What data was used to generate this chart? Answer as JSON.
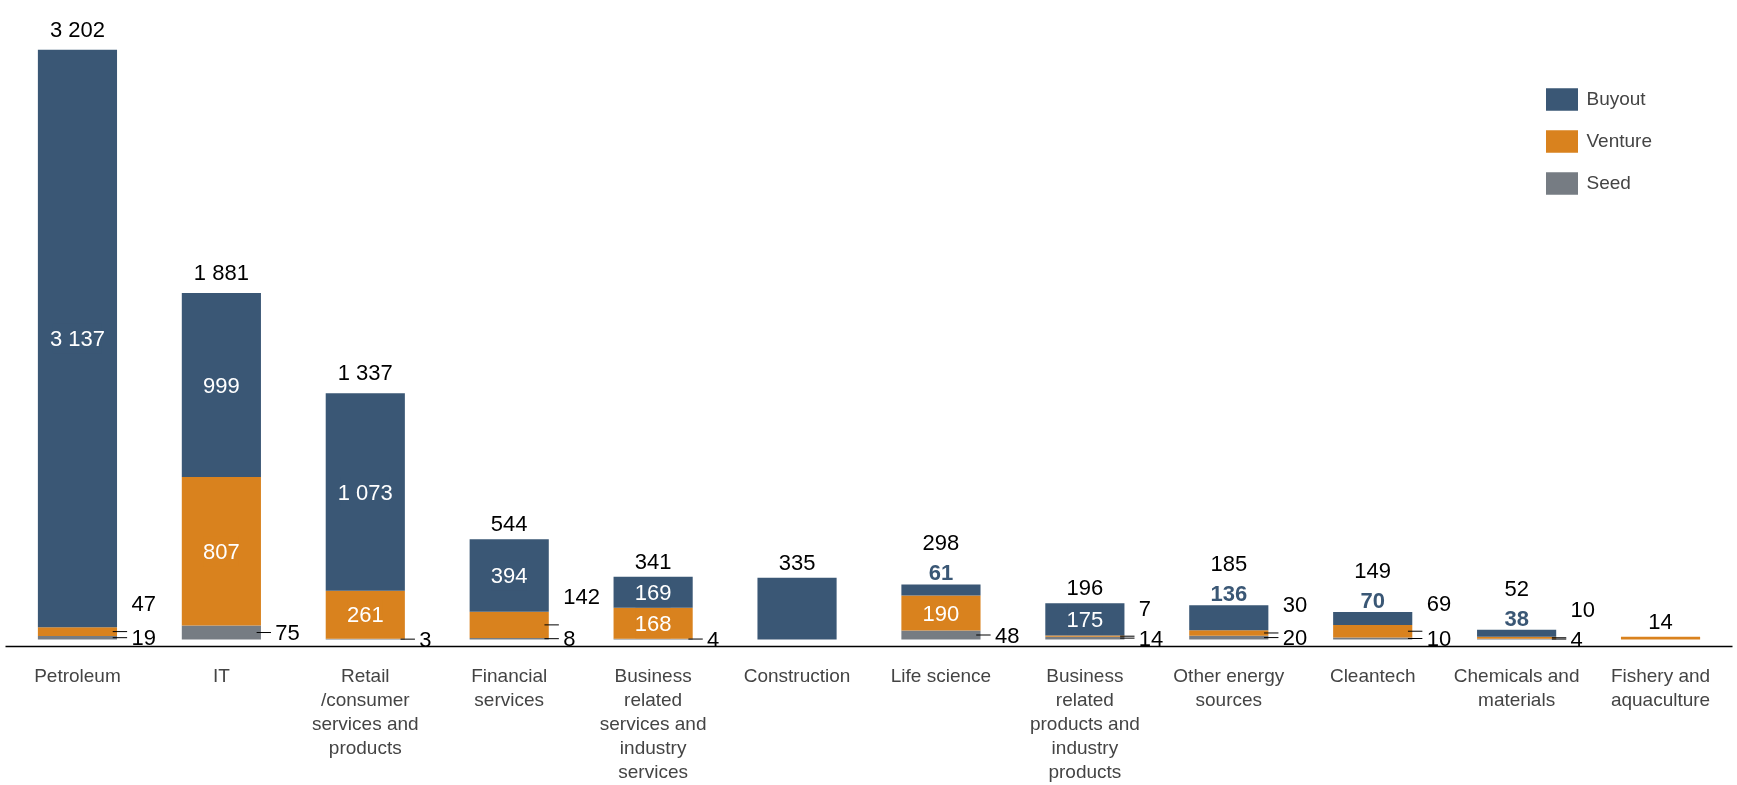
{
  "chart_data": {
    "type": "bar",
    "stacked": true,
    "legend": "top right",
    "grid": false,
    "categories": [
      "Petroleum",
      "IT",
      "Retail /consumer services and products",
      "Financial services",
      "Business related services and industry services",
      "Construction",
      "Life science",
      "Business related products and industry products",
      "Other energy sources",
      "Cleantech",
      "Chemicals and materials",
      "Fishery and aquaculture"
    ],
    "series": [
      {
        "name": "Seed",
        "color": "#767c83",
        "values": [
          19,
          75,
          3,
          8,
          4,
          null,
          48,
          14,
          20,
          10,
          4,
          null
        ],
        "value_labels": [
          "19",
          "75",
          "3",
          "8",
          "4",
          null,
          "48",
          "14",
          "20",
          "10",
          "4",
          null
        ]
      },
      {
        "name": "Venture",
        "color": "#d9821e",
        "values": [
          47,
          807,
          261,
          142,
          168,
          null,
          190,
          7,
          30,
          69,
          10,
          14
        ],
        "value_labels": [
          "47",
          "807",
          "261",
          "142",
          "168",
          null,
          "190",
          "7",
          "30",
          "69",
          "10",
          null
        ]
      },
      {
        "name": "Buyout",
        "color": "#3a5775",
        "values": [
          3137,
          999,
          1073,
          394,
          169,
          335,
          61,
          175,
          136,
          70,
          38,
          null
        ],
        "value_labels": [
          "3 137",
          "999",
          "1 073",
          "394",
          "169",
          null,
          "61",
          "175",
          "136",
          "70",
          "38",
          null
        ]
      }
    ],
    "totals": [
      "3 202",
      "1 881",
      "1 337",
      "544",
      "341",
      "335",
      "298",
      "196",
      "185",
      "149",
      "52",
      "14"
    ]
  }
}
